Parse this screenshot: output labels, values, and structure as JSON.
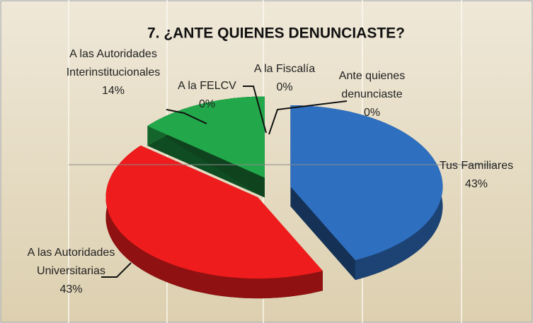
{
  "chart_data": {
    "type": "pie3d",
    "title": "7. ¿ANTE QUIENES DENUNCIASTE?",
    "categories": [
      "Tus Familiares",
      "A las Autoridades Universitarias",
      "A las Autoridades Interinstitucionales",
      "A la FELCV",
      "A la Fiscalía",
      "Ante quienes denunciaste"
    ],
    "values": [
      43,
      43,
      14,
      0,
      0,
      0
    ],
    "value_labels": [
      "43%",
      "43%",
      "14%",
      "0%",
      "0%",
      "0%"
    ],
    "colors": [
      "#2f6fc0",
      "#ee1c1c",
      "#22a84a",
      "#7030a0",
      "#f0a030",
      "#40a0c0"
    ]
  }
}
